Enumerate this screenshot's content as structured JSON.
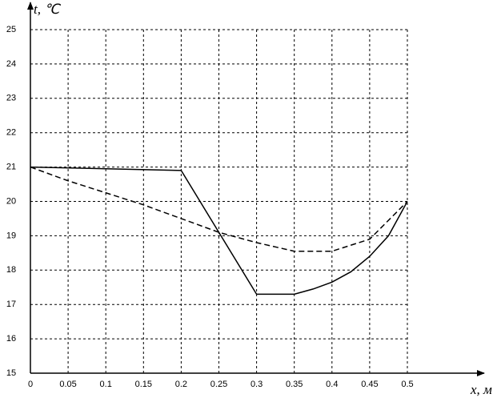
{
  "chart_data": {
    "type": "line",
    "x_label": "x, м",
    "y_label": "t, ℃",
    "series": [
      {
        "color": "#000000",
        "line_style": "solid",
        "x": [
          0,
          0.2,
          0.3,
          0.325,
          0.35,
          0.375,
          0.4,
          0.425,
          0.45,
          0.475,
          0.5
        ],
        "values": [
          21,
          20.9,
          17.3,
          17.3,
          17.3,
          17.45,
          17.65,
          17.95,
          18.4,
          19.0,
          20.0
        ]
      },
      {
        "color": "#000000",
        "line_style": "dashed",
        "x": [
          0,
          0.05,
          0.1,
          0.15,
          0.2,
          0.25,
          0.3,
          0.35,
          0.4,
          0.45,
          0.5
        ],
        "values": [
          21,
          20.6,
          20.25,
          19.9,
          19.5,
          19.1,
          18.8,
          18.55,
          18.55,
          18.9,
          20.0
        ]
      }
    ],
    "xlim": [
      0,
      0.5
    ],
    "ylim": [
      15,
      25
    ],
    "xticks": [
      0,
      0.05,
      0.1,
      0.15,
      0.2,
      0.25,
      0.3,
      0.35,
      0.4,
      0.45,
      0.5
    ],
    "yticks": [
      15,
      16,
      17,
      18,
      19,
      20,
      21,
      22,
      23,
      24,
      25
    ],
    "grid": true
  }
}
